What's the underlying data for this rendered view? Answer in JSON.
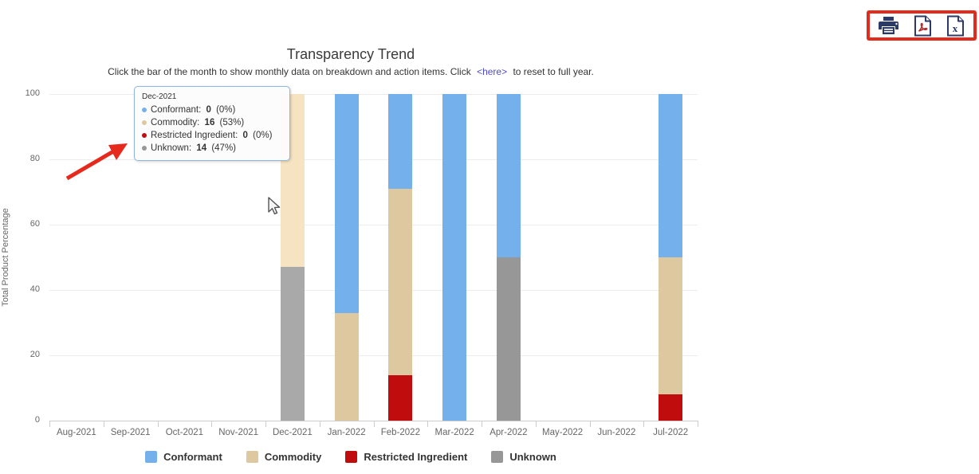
{
  "subtitle": {
    "before": "Click the bar of the month to show monthly data on breakdown and action items. Click",
    "link": "<here>",
    "after": "to reset to full year."
  },
  "export_toolbar": {
    "icon_color": "#2b3a67",
    "annotation_border_color": "#e32b1d",
    "buttons": [
      {
        "name": "print",
        "label": "Print chart"
      },
      {
        "name": "export-pdf",
        "label": "Export to PDF"
      },
      {
        "name": "export-excel",
        "label": "Export to Excel"
      }
    ]
  },
  "tooltip": {
    "header": "Dec-2021",
    "rows": [
      {
        "label": "Conformant",
        "value": "0",
        "pct": "0%",
        "color": "#74b1ec"
      },
      {
        "label": "Commodity",
        "value": "16",
        "pct": "53%",
        "color": "#ddc8a0"
      },
      {
        "label": "Restricted Ingredient",
        "value": "0",
        "pct": "0%",
        "color": "#c00c0c"
      },
      {
        "label": "Unknown",
        "value": "14",
        "pct": "47%",
        "color": "#979797"
      }
    ]
  },
  "chart_data": {
    "type": "bar",
    "stacked": true,
    "title": "Transparency Trend",
    "ylabel": "Total Product Percentage",
    "xlabel": "",
    "ylim": [
      0,
      100
    ],
    "yticks": [
      0,
      20,
      40,
      60,
      80,
      100
    ],
    "grid": "horizontal",
    "legend_position": "bottom",
    "highlighted_category": "Dec-2021",
    "categories": [
      "Aug-2021",
      "Sep-2021",
      "Oct-2021",
      "Nov-2021",
      "Dec-2021",
      "Jan-2022",
      "Feb-2022",
      "Mar-2022",
      "Apr-2022",
      "May-2022",
      "Jun-2022",
      "Jul-2022"
    ],
    "series": [
      {
        "name": "Conformant",
        "color": "#74b1ec",
        "hover_color": "#8cc0f2",
        "values": [
          0,
          0,
          0,
          0,
          0,
          67,
          29,
          100,
          50,
          0,
          0,
          50
        ]
      },
      {
        "name": "Commodity",
        "color": "#ddc8a0",
        "hover_color": "#f5e3c2",
        "values": [
          0,
          0,
          0,
          0,
          53,
          33,
          57,
          0,
          0,
          0,
          0,
          42
        ]
      },
      {
        "name": "Restricted Ingredient",
        "color": "#c00c0c",
        "hover_color": "#d54040",
        "values": [
          0,
          0,
          0,
          0,
          0,
          0,
          14,
          0,
          0,
          0,
          0,
          8
        ]
      },
      {
        "name": "Unknown",
        "color": "#979797",
        "hover_color": "#a9a9a9",
        "values": [
          0,
          0,
          0,
          0,
          47,
          0,
          0,
          0,
          50,
          0,
          0,
          0
        ]
      }
    ]
  },
  "annotations": {
    "arrow_color": "#e5291d"
  }
}
